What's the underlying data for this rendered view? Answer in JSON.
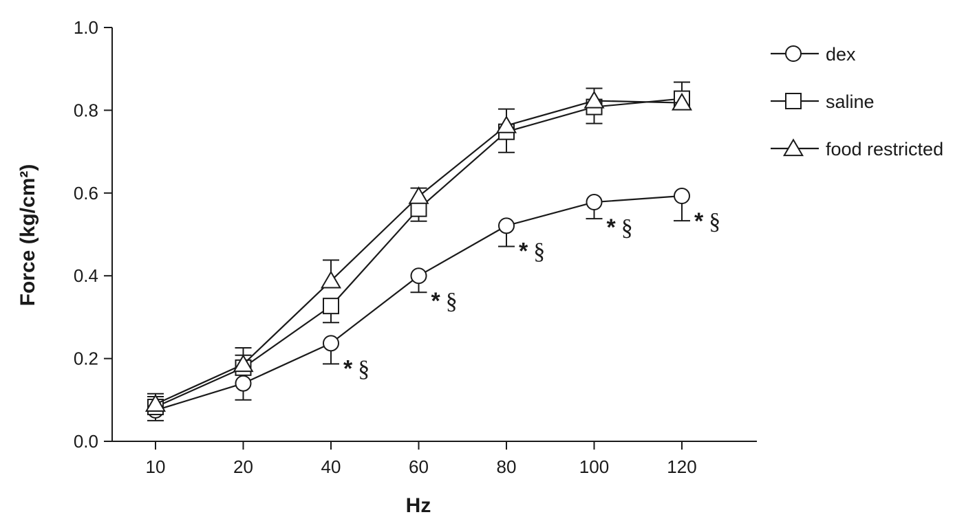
{
  "chart_data": {
    "type": "line",
    "title": "",
    "xlabel": "Hz",
    "ylabel": "Force (kg/cm²)",
    "x": [
      10,
      20,
      40,
      60,
      80,
      100,
      120
    ],
    "x_tick_labels": [
      "10",
      "20",
      "40",
      "60",
      "80",
      "100",
      "120"
    ],
    "x_scale": "categorical",
    "ylim": [
      0,
      1.0
    ],
    "y_ticks": [
      0.0,
      0.2,
      0.4,
      0.6,
      0.8,
      1.0
    ],
    "y_tick_labels": [
      "0.0",
      "0.2",
      "0.4",
      "0.6",
      "0.8",
      "1.0"
    ],
    "grid": false,
    "legend_position": "top-right",
    "series": [
      {
        "name": "dex",
        "marker": "circle",
        "values": [
          0.075,
          0.14,
          0.237,
          0.4,
          0.521,
          0.578,
          0.593
        ],
        "error": [
          0.025,
          0.04,
          0.05,
          0.04,
          0.05,
          0.04,
          0.06
        ],
        "error_direction": "down"
      },
      {
        "name": "saline",
        "marker": "square",
        "values": [
          0.083,
          0.178,
          0.327,
          0.562,
          0.748,
          0.808,
          0.828
        ],
        "error": [
          0.025,
          0.03,
          0.04,
          0.03,
          0.05,
          0.04,
          0.04
        ],
        "error_direction": "mixed"
      },
      {
        "name": "food restricted",
        "marker": "triangle",
        "values": [
          0.09,
          0.186,
          0.388,
          0.592,
          0.763,
          0.823,
          0.818
        ],
        "error": [
          0.025,
          0.04,
          0.05,
          0.02,
          0.04,
          0.03,
          0.02
        ],
        "error_direction": "up"
      }
    ],
    "annotations": [
      {
        "x": 40,
        "text_star": "*",
        "text_sec": "§"
      },
      {
        "x": 60,
        "text_star": "*",
        "text_sec": "§"
      },
      {
        "x": 80,
        "text_star": "*",
        "text_sec": "§"
      },
      {
        "x": 100,
        "text_star": "*",
        "text_sec": "§"
      },
      {
        "x": 120,
        "text_star": "*",
        "text_sec": "§"
      }
    ]
  }
}
